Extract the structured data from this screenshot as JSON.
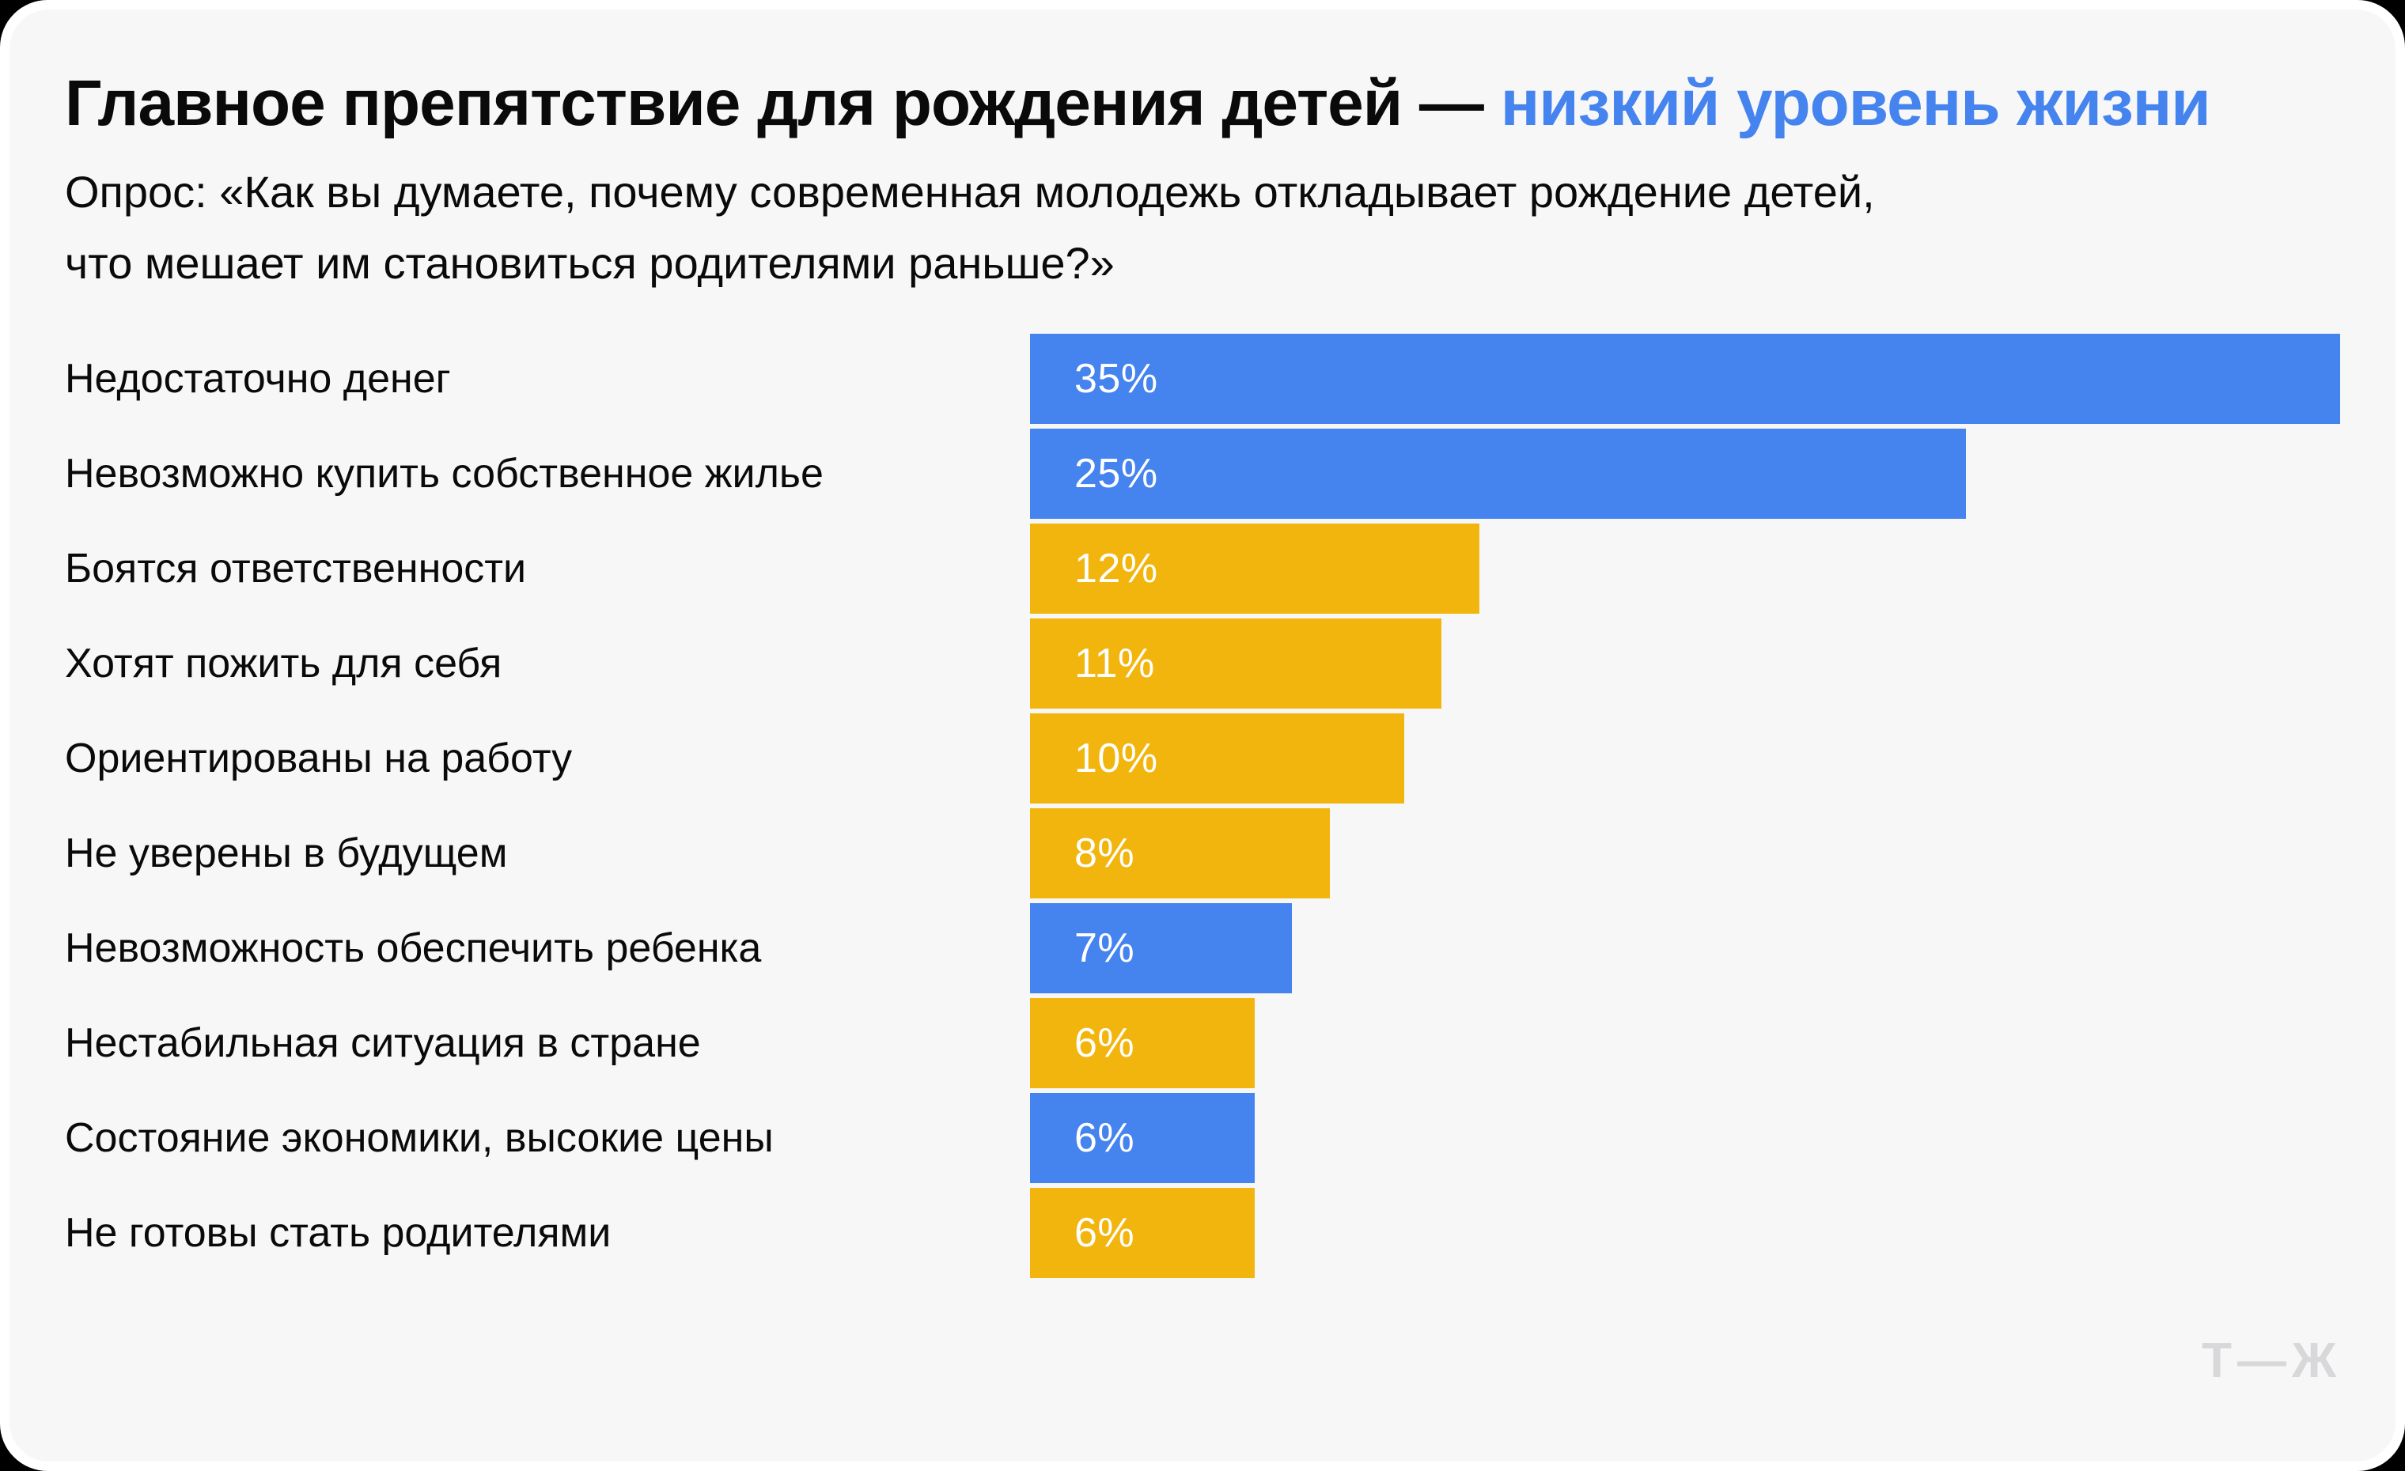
{
  "title": {
    "main": "Главное препятствие для рождения детей — ",
    "highlight": "низкий уровень жизни"
  },
  "subtitle": {
    "line1": "Опрос: «Как вы думаете, почему современная молодежь откладывает рождение детей,",
    "line2": "что мешает им становиться родителями раньше?»"
  },
  "logo": {
    "text": "Т—Ж"
  },
  "colors": {
    "blue": "#4583EE",
    "yellow": "#F2B50D",
    "card_bg": "#F7F7F8",
    "title_highlight": "#4583EE",
    "text": "#0A0A0A",
    "value_text": "#FFFFFF",
    "logo_gray": "#D8D8DA"
  },
  "chart_data": {
    "type": "bar",
    "orientation": "horizontal",
    "title": "Главное препятствие для рождения детей — низкий уровень жизни",
    "subtitle": "Опрос: «Как вы думаете, почему современная молодежь откладывает рождение детей, что мешает им становиться родителями раньше?»",
    "unit": "%",
    "xlim": [
      0,
      35
    ],
    "grid": false,
    "legend": false,
    "categories": [
      "Недостаточно денег",
      "Невозможно купить собственное жилье",
      "Боятся ответственности",
      "Хотят пожить для себя",
      "Ориентированы на работу",
      "Не уверены в будущем",
      "Невозможность обеспечить ребенка",
      "Нестабильная ситуация в стране",
      "Состояние экономики, высокие цены",
      "Не готовы стать родителями"
    ],
    "values": [
      35,
      25,
      12,
      11,
      10,
      8,
      7,
      6,
      6,
      6
    ],
    "value_labels": [
      "35%",
      "25%",
      "12%",
      "11%",
      "10%",
      "8%",
      "7%",
      "6%",
      "6%",
      "6%"
    ],
    "bar_colors": [
      "blue",
      "blue",
      "yellow",
      "yellow",
      "yellow",
      "yellow",
      "blue",
      "yellow",
      "blue",
      "yellow"
    ]
  }
}
